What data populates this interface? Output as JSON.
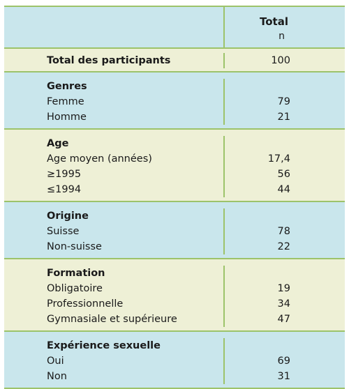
{
  "header": {
    "total": "Total",
    "n": "n"
  },
  "total_row": {
    "label": "Total des participants",
    "value": "100"
  },
  "groups": [
    {
      "title": "Genres",
      "rows": [
        {
          "label": "Femme",
          "value": "79"
        },
        {
          "label": "Homme",
          "value": "21"
        }
      ]
    },
    {
      "title": "Age",
      "rows": [
        {
          "label": "Age moyen (années)",
          "value": "17,4"
        },
        {
          "label": "≥1995",
          "value": "56"
        },
        {
          "label": "≤1994",
          "value": "44"
        }
      ]
    },
    {
      "title": "Origine",
      "rows": [
        {
          "label": "Suisse",
          "value": "78"
        },
        {
          "label": "Non-suisse",
          "value": "22"
        }
      ]
    },
    {
      "title": "Formation",
      "rows": [
        {
          "label": "Obligatoire",
          "value": "19"
        },
        {
          "label": "Professionnelle",
          "value": "34"
        },
        {
          "label": "Gymnasiale et supérieure",
          "value": "47"
        }
      ]
    },
    {
      "title": "Expérience sexuelle",
      "rows": [
        {
          "label": "Oui",
          "value": "69"
        },
        {
          "label": "Non",
          "value": "31"
        }
      ]
    }
  ],
  "colors": {
    "border": "#9cc36a",
    "blue_band": "#c9e6ec",
    "cream_band": "#eef0d6"
  }
}
